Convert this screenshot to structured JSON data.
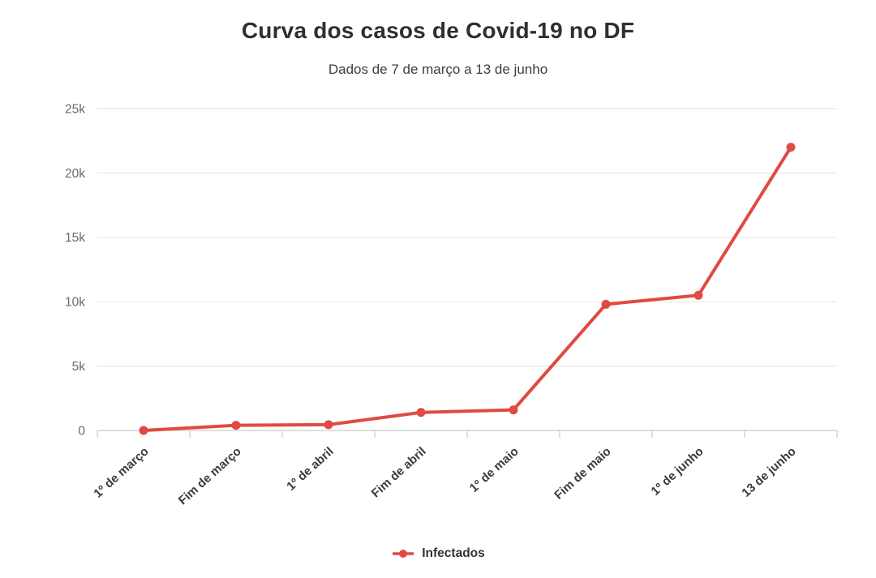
{
  "chart_data": {
    "type": "line",
    "title": "Curva dos casos de Covid-19 no DF",
    "subtitle": "Dados de 7 de março a 13 de junho",
    "categories": [
      "1º de março",
      "Fim de março",
      "1º de abril",
      "Fim de abril",
      "1º de maio",
      "Fim de maio",
      "1º de junho",
      "13 de junho"
    ],
    "series": [
      {
        "name": "Infectados",
        "color": "#e04a42",
        "values": [
          1,
          400,
          450,
          1400,
          1600,
          9800,
          10500,
          22000
        ]
      }
    ],
    "ylim": [
      0,
      25000
    ],
    "yticks": [
      {
        "value": 0,
        "label": "0"
      },
      {
        "value": 5000,
        "label": "5k"
      },
      {
        "value": 10000,
        "label": "10k"
      },
      {
        "value": 15000,
        "label": "15k"
      },
      {
        "value": 20000,
        "label": "20k"
      },
      {
        "value": 25000,
        "label": "25k"
      }
    ],
    "grid": true,
    "legend_position": "bottom"
  },
  "colors": {
    "accent": "#e04a42",
    "gridline": "#e8e8e8",
    "zeroline": "#d4d4d4",
    "tick_mark": "#cccccc"
  }
}
